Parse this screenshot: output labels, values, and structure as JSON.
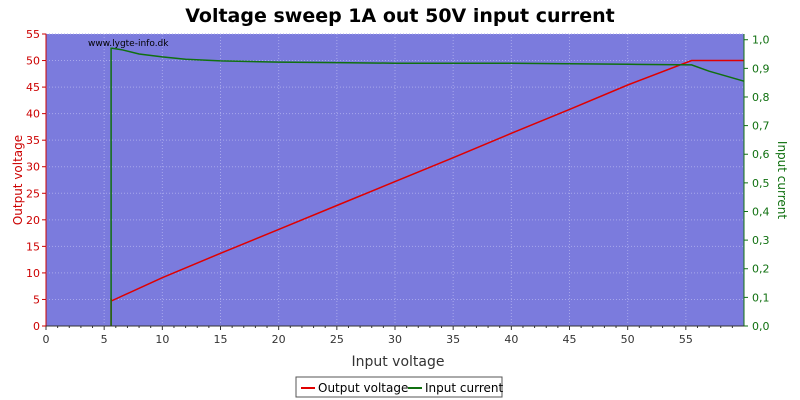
{
  "chart_data": {
    "type": "line",
    "title": "Voltage sweep 1A out 50V input current",
    "xlabel": "Input voltage",
    "ylabel_left": "Output voltage",
    "ylabel_right": "Input current",
    "watermark": "www.lygte-info.dk",
    "xlim": [
      0,
      60
    ],
    "ylim_left": [
      0,
      55
    ],
    "ylim_right": [
      0,
      1.02
    ],
    "x_ticks": [
      "0",
      "5",
      "10",
      "15",
      "20",
      "25",
      "30",
      "35",
      "40",
      "45",
      "50",
      "55"
    ],
    "y_left_ticks": [
      "0",
      "5",
      "10",
      "15",
      "20",
      "25",
      "30",
      "35",
      "40",
      "45",
      "50",
      "55"
    ],
    "y_right_ticks": [
      "0,0",
      "0,1",
      "0,2",
      "0,3",
      "0,4",
      "0,5",
      "0,6",
      "0,7",
      "0,8",
      "0,9",
      "1,0"
    ],
    "grid": true,
    "legend_position": "bottom-center",
    "colors": {
      "plot_background": "#7b7bdd",
      "grid": "#a8a8ec",
      "output_voltage": "#e00000",
      "input_current": "#107010",
      "left_axis": "#cc0000",
      "right_axis": "#107010"
    },
    "series": [
      {
        "name": "Output voltage",
        "axis": "left",
        "x": [
          5.6,
          5.6,
          5.6,
          5.7,
          10,
          15,
          20,
          25,
          30,
          35,
          40,
          45,
          50,
          55.5,
          60
        ],
        "y": [
          0,
          3.5,
          5,
          4.8,
          9.1,
          13.7,
          18.2,
          22.7,
          27.2,
          31.7,
          36.3,
          40.8,
          45.4,
          50,
          50
        ]
      },
      {
        "name": "Input current",
        "axis": "right",
        "x": [
          5.6,
          5.6,
          5.7,
          6.5,
          8,
          10,
          12,
          15,
          20,
          25,
          30,
          35,
          40,
          45,
          50,
          55.5,
          57,
          60
        ],
        "y": [
          0,
          0.97,
          0.97,
          0.965,
          0.95,
          0.94,
          0.932,
          0.926,
          0.922,
          0.92,
          0.918,
          0.918,
          0.918,
          0.916,
          0.914,
          0.912,
          0.89,
          0.855
        ]
      }
    ]
  }
}
